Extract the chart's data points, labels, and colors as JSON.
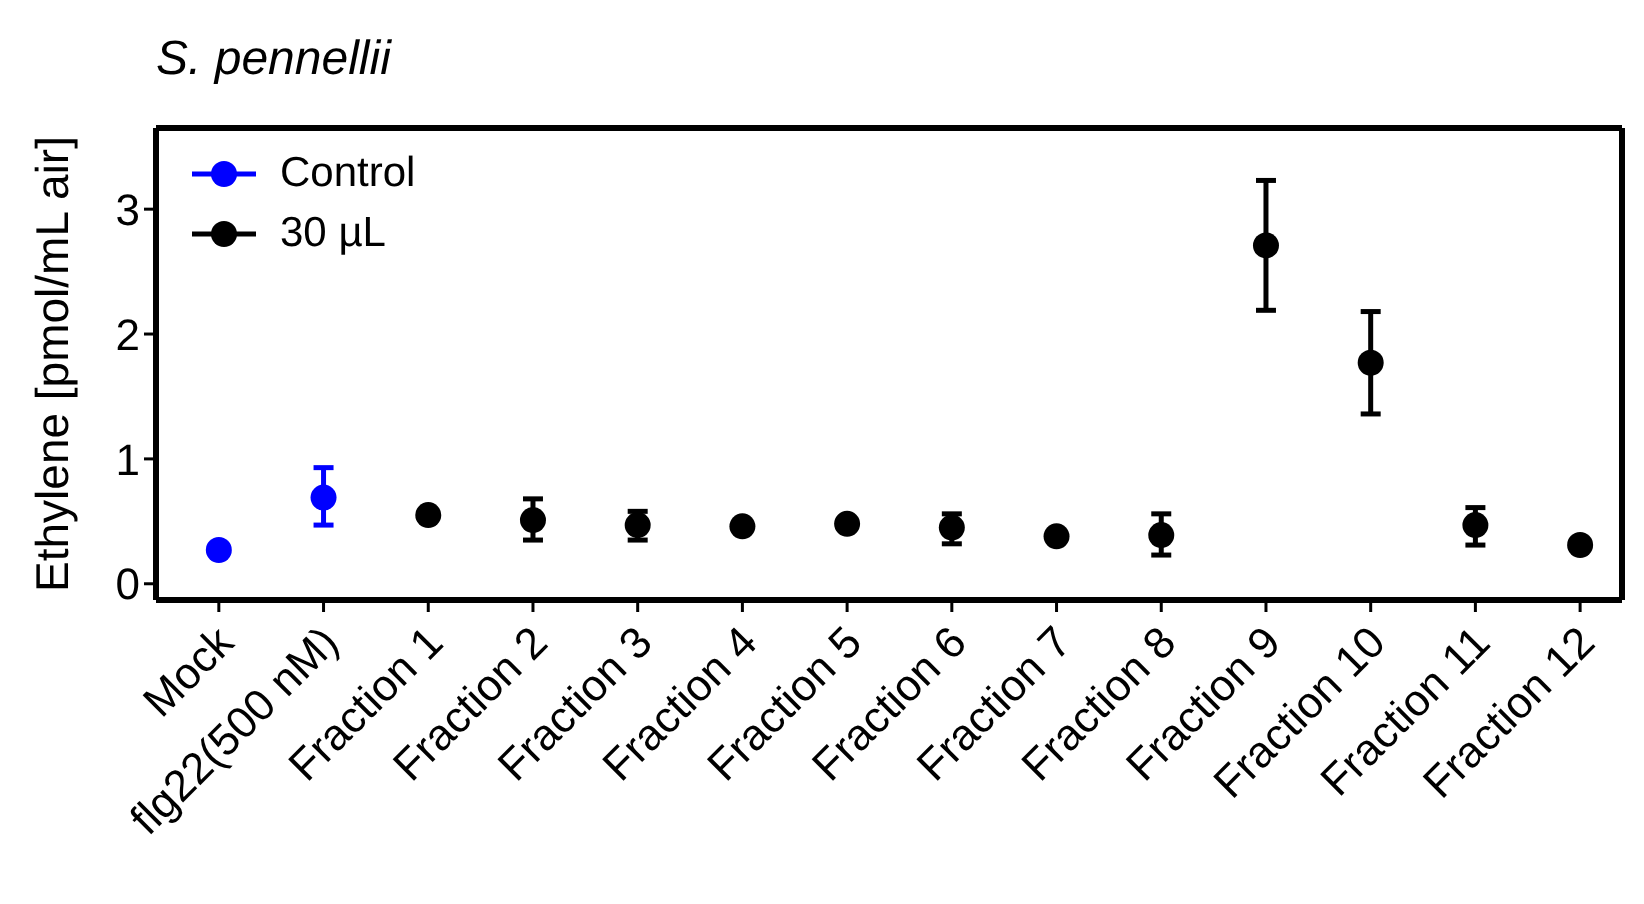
{
  "chart_data": {
    "type": "scatter",
    "title": "S. pennellii",
    "ylabel": "Ethylene [pmol/mL air]",
    "categories": [
      "Mock",
      "flg22(500 nM)",
      "Fraction 1",
      "Fraction 2",
      "Fraction 3",
      "Fraction 4",
      "Fraction 5",
      "Fraction 6",
      "Fraction 7",
      "Fraction 8",
      "Fraction 9",
      "Fraction 10",
      "Fraction 11",
      "Fraction 12"
    ],
    "series": [
      {
        "name": "Control",
        "color": "#0000ff",
        "values": [
          0.27,
          0.69,
          null,
          null,
          null,
          null,
          null,
          null,
          null,
          null,
          null,
          null,
          null,
          null
        ],
        "errors": [
          null,
          [
            0.47,
            0.93
          ],
          null,
          null,
          null,
          null,
          null,
          null,
          null,
          null,
          null,
          null,
          null,
          null
        ]
      },
      {
        "name": "30 µL",
        "color": "#000000",
        "values": [
          null,
          null,
          0.55,
          0.51,
          0.47,
          0.46,
          0.48,
          0.45,
          0.38,
          0.39,
          2.71,
          1.77,
          0.47,
          0.31
        ],
        "errors": [
          null,
          null,
          null,
          [
            0.35,
            0.68
          ],
          [
            0.35,
            0.58
          ],
          null,
          null,
          [
            0.32,
            0.56
          ],
          null,
          [
            0.23,
            0.56
          ],
          [
            2.19,
            3.23
          ],
          [
            1.36,
            2.18
          ],
          [
            0.31,
            0.61
          ],
          null
        ]
      }
    ],
    "ylim": [
      -0.13,
      3.65
    ],
    "yticks": [
      0,
      1,
      2,
      3
    ],
    "grid": false,
    "legend": "top left",
    "marker": "circle"
  }
}
